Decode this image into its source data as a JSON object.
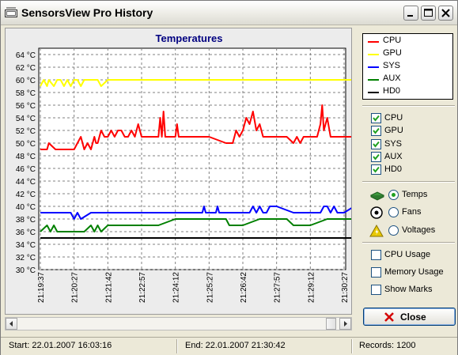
{
  "window": {
    "title": "SensorsView Pro History"
  },
  "chart_data": {
    "type": "line",
    "title": "Temperatures",
    "y_unit": "°C",
    "ylim": [
      30,
      64
    ],
    "yticks": [
      "64 °C",
      "62 °C",
      "60 °C",
      "58 °C",
      "56 °C",
      "54 °C",
      "52 °C",
      "50 °C",
      "48 °C",
      "46 °C",
      "44 °C",
      "42 °C",
      "40 °C",
      "38 °C",
      "36 °C",
      "34 °C",
      "32 °C",
      "30 °C"
    ],
    "xticks": [
      "21:19:37",
      "21:20:27",
      "21:21:42",
      "21:22:57",
      "21:24:12",
      "21:25:27",
      "21:26:42",
      "21:27:57",
      "21:29:12",
      "21:30:27"
    ],
    "grid": true,
    "series": [
      {
        "name": "CPU",
        "color": "#ff0000",
        "x": [
          0,
          0.2,
          0.25,
          0.45,
          0.55,
          0.6,
          0.75,
          0.78,
          0.85,
          0.9,
          1,
          1.1,
          1.2,
          1.3,
          1.4,
          1.5,
          1.6,
          1.65,
          1.7,
          1.8,
          1.9,
          2,
          2.1,
          2.2,
          2.3,
          2.4,
          2.5,
          2.6,
          2.7,
          2.8,
          2.9,
          3,
          3.5,
          3.55,
          3.6,
          3.65,
          3.7,
          3.8,
          3.9,
          4,
          4.05,
          4.1,
          4.5,
          5,
          5.5,
          5.7,
          5.8,
          5.9,
          6,
          6.1,
          6.2,
          6.3,
          6.4,
          6.5,
          6.6,
          6.7,
          6.8,
          7,
          7.3,
          7.5,
          7.6,
          7.7,
          7.8,
          8,
          8.2,
          8.3,
          8.35,
          8.4,
          8.5,
          8.6,
          8.7,
          9,
          9.5,
          9.7,
          9.8,
          9.9,
          10
        ],
        "y": [
          49,
          49,
          50,
          49,
          49,
          49,
          49,
          49,
          49,
          49,
          49,
          50,
          51,
          49,
          50,
          49,
          51,
          50,
          50,
          52,
          51,
          51,
          52,
          51,
          52,
          52,
          51,
          51,
          52,
          51,
          53,
          51,
          51,
          54,
          51,
          55,
          51,
          51,
          51,
          51,
          53,
          51,
          51,
          51,
          50,
          50,
          52,
          51,
          52,
          54,
          53,
          55,
          52,
          53,
          51,
          51,
          51,
          51,
          51,
          50,
          51,
          50,
          51,
          51,
          51,
          53,
          56,
          52,
          54,
          51,
          51,
          51,
          51,
          51,
          51,
          50,
          50
        ],
        "visible": true
      },
      {
        "name": "GPU",
        "color": "#ffff00",
        "x": [
          0,
          0.1,
          0.2,
          0.25,
          0.4,
          0.5,
          0.6,
          0.7,
          0.8,
          0.9,
          1,
          1.1,
          1.2,
          1.3,
          1.4,
          1.5,
          1.6,
          1.7,
          1.8,
          2,
          2.2,
          2.4,
          3,
          4,
          5,
          6,
          7,
          8,
          9,
          10
        ],
        "y": [
          59,
          60,
          59,
          60,
          59,
          60,
          60,
          59,
          60,
          59,
          60,
          60,
          59,
          60,
          60,
          60,
          60,
          60,
          59,
          60,
          60,
          60,
          60,
          60,
          60,
          60,
          60,
          60,
          60,
          60
        ],
        "visible": true
      },
      {
        "name": "SYS",
        "color": "#0000ff",
        "x": [
          0,
          0.5,
          0.9,
          1,
          1.1,
          1.2,
          1.5,
          2,
          3,
          4,
          4.8,
          4.85,
          4.9,
          5,
          5.2,
          5.25,
          5.3,
          5.5,
          6,
          6.2,
          6.3,
          6.4,
          6.5,
          6.6,
          6.7,
          6.8,
          7,
          7.5,
          8,
          8.3,
          8.4,
          8.5,
          8.6,
          8.7,
          8.8,
          9,
          9.3,
          9.5,
          9.7,
          9.8,
          10
        ],
        "y": [
          39,
          39,
          39,
          38,
          39,
          38,
          39,
          39,
          39,
          39,
          39,
          40,
          39,
          39,
          39,
          40,
          39,
          39,
          39,
          39,
          40,
          39,
          40,
          39,
          39,
          40,
          40,
          39,
          39,
          39,
          40,
          40,
          39,
          40,
          39,
          39,
          40,
          40,
          40,
          39,
          39
        ],
        "visible": true
      },
      {
        "name": "AUX",
        "color": "#008000",
        "x": [
          0,
          0.2,
          0.3,
          0.4,
          0.5,
          1,
          1.3,
          1.5,
          1.6,
          1.7,
          1.8,
          2,
          2.5,
          3,
          3.5,
          4,
          4.5,
          5,
          5.5,
          5.6,
          6,
          6.5,
          7,
          7.3,
          7.5,
          8,
          8.5,
          9,
          9.5,
          10
        ],
        "y": [
          36,
          37,
          36,
          37,
          36,
          36,
          36,
          37,
          36,
          37,
          36,
          37,
          37,
          37,
          37,
          38,
          38,
          38,
          38,
          37,
          37,
          38,
          38,
          38,
          37,
          37,
          38,
          38,
          38,
          38
        ],
        "visible": true
      },
      {
        "name": "HD0",
        "color": "#000000",
        "x": [
          0,
          10
        ],
        "y": [
          35,
          35
        ],
        "visible": true
      }
    ]
  },
  "legend": {
    "items": [
      {
        "label": "CPU",
        "color": "#ff0000"
      },
      {
        "label": "GPU",
        "color": "#ffff00"
      },
      {
        "label": "SYS",
        "color": "#0000ff"
      },
      {
        "label": "AUX",
        "color": "#008000"
      },
      {
        "label": "HD0",
        "color": "#000000"
      }
    ]
  },
  "series_toggles": [
    {
      "label": "CPU",
      "checked": true
    },
    {
      "label": "GPU",
      "checked": true
    },
    {
      "label": "SYS",
      "checked": true
    },
    {
      "label": "AUX",
      "checked": true
    },
    {
      "label": "HD0",
      "checked": true
    }
  ],
  "view_mode": {
    "options": [
      {
        "label": "Temps",
        "icon": "chip-icon",
        "selected": true
      },
      {
        "label": "Fans",
        "icon": "fan-icon",
        "selected": false
      },
      {
        "label": "Voltages",
        "icon": "voltage-warning-icon",
        "selected": false
      }
    ]
  },
  "extra_options": [
    {
      "label": "CPU Usage",
      "checked": false
    },
    {
      "label": "Memory Usage",
      "checked": false
    },
    {
      "label": "Show Marks",
      "checked": false
    }
  ],
  "close_button": {
    "label": "Close",
    "icon": "close-x-icon"
  },
  "statusbar": {
    "start": "Start: 22.01.2007 16:03:16",
    "end": "End: 22.01.2007 21:30:42",
    "records": "Records: 1200"
  },
  "scrollbar": {
    "position": 1.0
  }
}
